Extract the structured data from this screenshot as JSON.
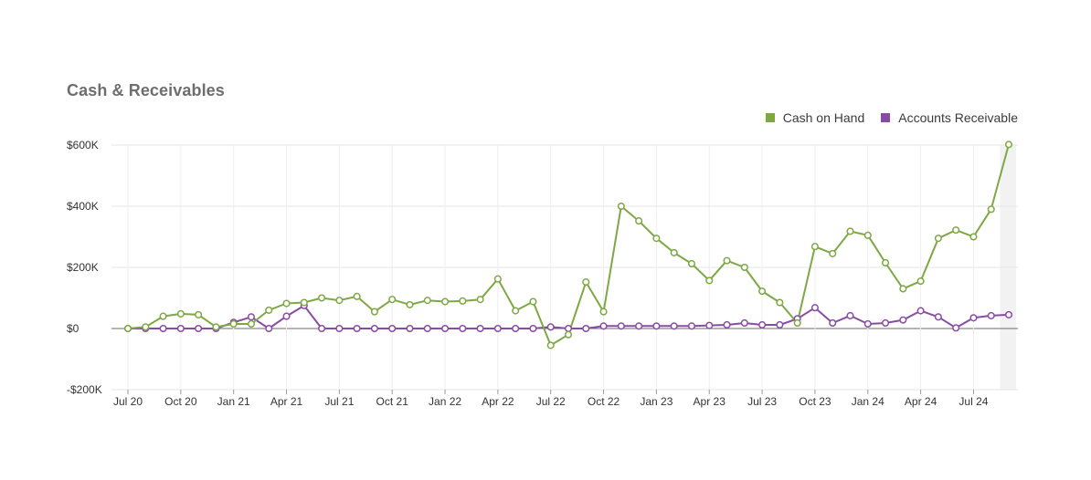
{
  "card": {
    "title": "Cash & Receivables"
  },
  "legend": [
    {
      "label": "Cash on Hand",
      "color": "#7da843"
    },
    {
      "label": "Accounts Receivable",
      "color": "#8a4ba3"
    }
  ],
  "chart_data": {
    "type": "line",
    "title": "Cash & Receivables",
    "xlabel": "",
    "ylabel": "",
    "ylim": [
      -200000,
      600000
    ],
    "y_ticks": [
      -200000,
      0,
      200000,
      400000,
      600000
    ],
    "y_tick_labels": [
      "-$200K",
      "$0",
      "$200K",
      "$400K",
      "$600K"
    ],
    "x_tick_labels": [
      "Jul 20",
      "Oct 20",
      "Jan 21",
      "Apr 21",
      "Jul 21",
      "Oct 21",
      "Jan 22",
      "Apr 22",
      "Jul 22",
      "Oct 22",
      "Jan 23",
      "Apr 23",
      "Jul 23",
      "Oct 23",
      "Jan 24",
      "Apr 24",
      "Jul 24"
    ],
    "grid": true,
    "legend_position": "top-right",
    "x": [
      "2020-07",
      "2020-08",
      "2020-09",
      "2020-10",
      "2020-11",
      "2020-12",
      "2021-01",
      "2021-02",
      "2021-03",
      "2021-04",
      "2021-05",
      "2021-06",
      "2021-07",
      "2021-08",
      "2021-09",
      "2021-10",
      "2021-11",
      "2021-12",
      "2022-01",
      "2022-02",
      "2022-03",
      "2022-04",
      "2022-05",
      "2022-06",
      "2022-07",
      "2022-08",
      "2022-09",
      "2022-10",
      "2022-11",
      "2022-12",
      "2023-01",
      "2023-02",
      "2023-03",
      "2023-04",
      "2023-05",
      "2023-06",
      "2023-07",
      "2023-08",
      "2023-09",
      "2023-10",
      "2023-11",
      "2023-12",
      "2024-01",
      "2024-02",
      "2024-03",
      "2024-04",
      "2024-05",
      "2024-06",
      "2024-07",
      "2024-08",
      "2024-09"
    ],
    "series": [
      {
        "name": "Cash on Hand",
        "color": "#7da843",
        "values": [
          0,
          5000,
          40000,
          48000,
          45000,
          5000,
          15000,
          15000,
          60000,
          82000,
          85000,
          100000,
          92000,
          105000,
          55000,
          95000,
          78000,
          92000,
          88000,
          90000,
          95000,
          162000,
          58000,
          88000,
          -55000,
          -20000,
          152000,
          55000,
          400000,
          352000,
          295000,
          248000,
          212000,
          157000,
          222000,
          200000,
          122000,
          85000,
          18000,
          268000,
          245000,
          318000,
          305000,
          215000,
          130000,
          155000,
          295000,
          322000,
          300000,
          390000,
          602000
        ]
      },
      {
        "name": "Accounts Receivable",
        "color": "#8a4ba3",
        "values": [
          0,
          0,
          0,
          0,
          0,
          0,
          20000,
          38000,
          0,
          40000,
          75000,
          0,
          0,
          0,
          0,
          0,
          0,
          0,
          0,
          0,
          0,
          0,
          0,
          0,
          5000,
          0,
          0,
          8000,
          8000,
          8000,
          8000,
          8000,
          8000,
          10000,
          12000,
          18000,
          12000,
          12000,
          32000,
          68000,
          18000,
          42000,
          15000,
          18000,
          28000,
          58000,
          38000,
          2000,
          35000,
          42000,
          45000
        ]
      }
    ]
  }
}
